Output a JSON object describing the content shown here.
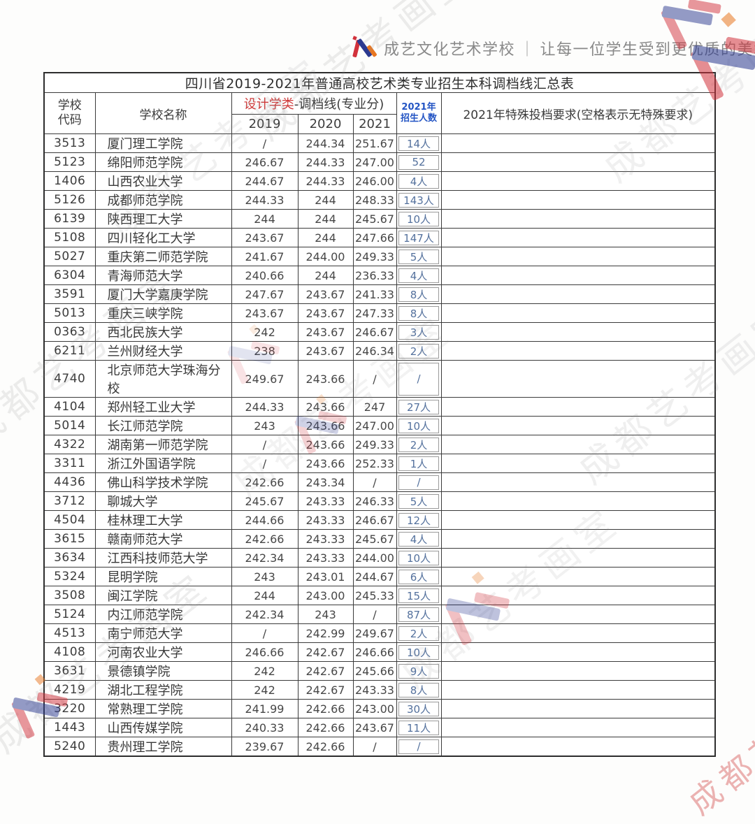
{
  "brand": {
    "name": "成艺文化艺术学校",
    "separator": "｜",
    "slogan": "让每一位学生受到更优质的美术教育"
  },
  "table": {
    "title": "四川省2019-2021年普通高校艺术类专业招生本科调档线汇总表",
    "headers": {
      "school_code": "学校\n代码",
      "school_name": "学校名称",
      "category": "设计学类",
      "category_suffix": "-调档线(专业分)",
      "years": [
        "2019",
        "2020",
        "2021"
      ],
      "enrollment": "2021年\n招生人数",
      "special": "2021年特殊投档要求(空格表示无特殊要求)"
    },
    "rows": [
      {
        "code": "3513",
        "name": "厦门理工学院",
        "s2019": "/",
        "s2020": "244.34",
        "s2021": "251.67",
        "num": "14人",
        "special": ""
      },
      {
        "code": "5123",
        "name": "绵阳师范学院",
        "s2019": "246.67",
        "s2020": "244.33",
        "s2021": "247.00",
        "num": "52",
        "special": ""
      },
      {
        "code": "1406",
        "name": "山西农业大学",
        "s2019": "244.67",
        "s2020": "244.33",
        "s2021": "246.00",
        "num": "4人",
        "special": ""
      },
      {
        "code": "5126",
        "name": "成都师范学院",
        "s2019": "244.33",
        "s2020": "244",
        "s2021": "248.33",
        "num": "143人",
        "special": ""
      },
      {
        "code": "6139",
        "name": "陕西理工大学",
        "s2019": "244",
        "s2020": "244",
        "s2021": "245.67",
        "num": "10人",
        "special": ""
      },
      {
        "code": "5108",
        "name": "四川轻化工大学",
        "s2019": "243.67",
        "s2020": "244",
        "s2021": "247.66",
        "num": "147人",
        "special": ""
      },
      {
        "code": "5027",
        "name": "重庆第二师范学院",
        "s2019": "241.67",
        "s2020": "244.00",
        "s2021": "249.33",
        "num": "5人",
        "special": ""
      },
      {
        "code": "6304",
        "name": "青海师范大学",
        "s2019": "240.66",
        "s2020": "244",
        "s2021": "236.33",
        "num": "4人",
        "special": ""
      },
      {
        "code": "3591",
        "name": "厦门大学嘉庚学院",
        "s2019": "247.67",
        "s2020": "243.67",
        "s2021": "241.33",
        "num": "8人",
        "special": ""
      },
      {
        "code": "5013",
        "name": "重庆三峡学院",
        "s2019": "243.67",
        "s2020": "243.67",
        "s2021": "247.33",
        "num": "8人",
        "special": ""
      },
      {
        "code": "0363",
        "name": "西北民族大学",
        "s2019": "242",
        "s2020": "243.67",
        "s2021": "246.67",
        "num": "3人",
        "special": ""
      },
      {
        "code": "6211",
        "name": "兰州财经大学",
        "s2019": "238",
        "s2020": "243.67",
        "s2021": "246.34",
        "num": "2人",
        "special": ""
      },
      {
        "code": "4740",
        "name": "北京师范大学珠海分校",
        "s2019": "249.67",
        "s2020": "243.66",
        "s2021": "/",
        "num": "/",
        "special": ""
      },
      {
        "code": "4104",
        "name": "郑州轻工业大学",
        "s2019": "244.33",
        "s2020": "243.66",
        "s2021": "247",
        "num": "27人",
        "special": ""
      },
      {
        "code": "5014",
        "name": "长江师范学院",
        "s2019": "243",
        "s2020": "243.66",
        "s2021": "247.00",
        "num": "10人",
        "special": ""
      },
      {
        "code": "4322",
        "name": "湖南第一师范学院",
        "s2019": "/",
        "s2020": "243.66",
        "s2021": "249.33",
        "num": "2人",
        "special": ""
      },
      {
        "code": "3311",
        "name": "浙江外国语学院",
        "s2019": "/",
        "s2020": "243.66",
        "s2021": "252.33",
        "num": "1人",
        "special": ""
      },
      {
        "code": "4436",
        "name": "佛山科学技术学院",
        "s2019": "242.66",
        "s2020": "243.34",
        "s2021": "/",
        "num": "/",
        "special": ""
      },
      {
        "code": "3712",
        "name": "聊城大学",
        "s2019": "245.67",
        "s2020": "243.33",
        "s2021": "246.33",
        "num": "5人",
        "special": ""
      },
      {
        "code": "4504",
        "name": "桂林理工大学",
        "s2019": "244.66",
        "s2020": "243.33",
        "s2021": "246.67",
        "num": "12人",
        "special": ""
      },
      {
        "code": "3615",
        "name": "赣南师范大学",
        "s2019": "242.66",
        "s2020": "243.33",
        "s2021": "245.67",
        "num": "4人",
        "special": ""
      },
      {
        "code": "3634",
        "name": "江西科技师范大学",
        "s2019": "242.34",
        "s2020": "243.33",
        "s2021": "244.00",
        "num": "10人",
        "special": ""
      },
      {
        "code": "5324",
        "name": "昆明学院",
        "s2019": "243",
        "s2020": "243.01",
        "s2021": "244.67",
        "num": "6人",
        "special": ""
      },
      {
        "code": "3508",
        "name": "闽江学院",
        "s2019": "244",
        "s2020": "243.00",
        "s2021": "245.33",
        "num": "15人",
        "special": ""
      },
      {
        "code": "5124",
        "name": "内江师范学院",
        "s2019": "242.34",
        "s2020": "243",
        "s2021": "/",
        "num": "87人",
        "special": ""
      },
      {
        "code": "4513",
        "name": "南宁师范大学",
        "s2019": "/",
        "s2020": "242.99",
        "s2021": "249.67",
        "num": "2人",
        "special": ""
      },
      {
        "code": "4108",
        "name": "河南农业大学",
        "s2019": "246.66",
        "s2020": "242.67",
        "s2021": "246.66",
        "num": "10人",
        "special": ""
      },
      {
        "code": "3631",
        "name": "景德镇学院",
        "s2019": "242",
        "s2020": "242.67",
        "s2021": "245.66",
        "num": "9人",
        "special": ""
      },
      {
        "code": "4219",
        "name": "湖北工程学院",
        "s2019": "242",
        "s2020": "242.67",
        "s2021": "243.33",
        "num": "8人",
        "special": ""
      },
      {
        "code": "3220",
        "name": "常熟理工学院",
        "s2019": "241.99",
        "s2020": "242.66",
        "s2021": "243.00",
        "num": "30人",
        "special": ""
      },
      {
        "code": "1443",
        "name": "山西传媒学院",
        "s2019": "240.33",
        "s2020": "242.66",
        "s2021": "243.67",
        "num": "11人",
        "special": ""
      },
      {
        "code": "5240",
        "name": "贵州理工学院",
        "s2019": "239.67",
        "s2020": "242.66",
        "s2021": "/",
        "num": "/",
        "special": ""
      }
    ]
  },
  "watermark": {
    "text": "成都艺考画室"
  },
  "colors": {
    "category_red": "#cf3a3a",
    "enroll_header_blue": "#2455c4",
    "enroll_value_blue": "#54719d",
    "brand_gray": "#898989",
    "logo_red": "#d2323c",
    "logo_blue": "#2b3990",
    "logo_orange": "#e87722"
  }
}
